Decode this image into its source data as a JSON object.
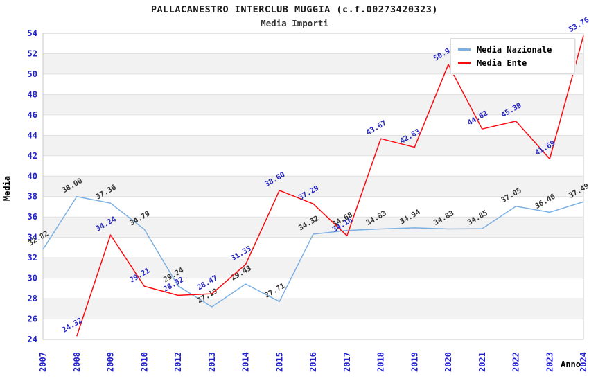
{
  "title": "PALLACANESTRO INTERCLUB MUGGIA (c.f.00273420323)",
  "subtitle": "Media Importi",
  "chart_data": {
    "type": "line",
    "categories": [
      "2007",
      "2008",
      "2009",
      "2010",
      "2012",
      "2013",
      "2014",
      "2015",
      "2016",
      "2017",
      "2018",
      "2019",
      "2020",
      "2021",
      "2022",
      "2023",
      "2024"
    ],
    "series": [
      {
        "name": "Media Nazionale",
        "color": "#7CB0E2",
        "label_color": "#333333",
        "values": [
          32.82,
          38.0,
          37.36,
          34.79,
          29.24,
          27.19,
          29.43,
          27.71,
          34.32,
          34.68,
          34.83,
          34.94,
          34.83,
          34.85,
          37.05,
          36.46,
          37.49
        ]
      },
      {
        "name": "Media Ente",
        "color": "#FA0A0F",
        "label_color": "#2525C4",
        "values": [
          null,
          24.32,
          34.24,
          29.21,
          28.32,
          28.47,
          31.35,
          38.6,
          37.29,
          34.16,
          43.67,
          42.83,
          50.94,
          44.62,
          45.39,
          41.69,
          53.76
        ]
      }
    ],
    "xlabel": "Anno",
    "ylabel": "Media",
    "ylim": [
      24,
      54
    ],
    "ytick_step": 2,
    "grid": "horizontal-bands",
    "legend_position": "top-right"
  },
  "colors": {
    "band_fill": "#F2F2F2",
    "band_alt_fill": "#FFFFFF",
    "gridline": "#E0E0E0",
    "plot_border": "#C8C8C8",
    "axis_tick_text": "#2222CC",
    "axis_title_text": "#000000"
  }
}
